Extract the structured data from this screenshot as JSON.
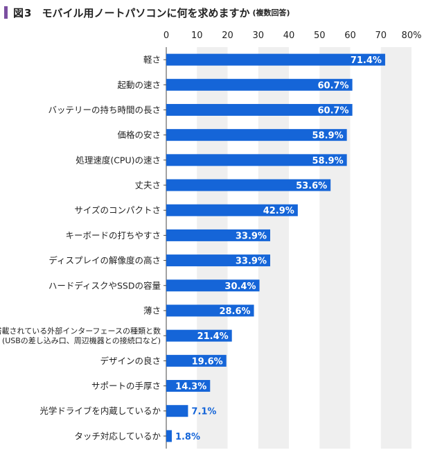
{
  "header": {
    "figure_number": "図3",
    "title": "モバイル用ノートパソコンに何を求めますか",
    "subtitle": "(複数回答)"
  },
  "colors": {
    "bar": "#1565d8",
    "bar_label_inside": "#ffffff",
    "bar_label_outside": "#1565d8",
    "band": "#efefef",
    "accent": "#7b4fa0"
  },
  "chart_data": {
    "type": "bar",
    "orientation": "horizontal",
    "title": "モバイル用ノートパソコンに何を求めますか",
    "categories": [
      "軽さ",
      "起動の速さ",
      "バッテリーの持ち時間の長さ",
      "価格の安さ",
      "処理速度(CPU)の速さ",
      "丈夫さ",
      "サイズのコンパクトさ",
      "キーボードの打ちやすさ",
      "ディスプレイの解像度の高さ",
      "ハードディスクやSSDの容量",
      "薄さ",
      "搭載されている外部インターフェースの種類と数\n(USBの差し込み口、周辺機器との接続口など)",
      "デザインの良さ",
      "サポートの手厚さ",
      "光学ドライブを内蔵しているか",
      "タッチ対応しているか"
    ],
    "values": [
      71.4,
      60.7,
      60.7,
      58.9,
      58.9,
      53.6,
      42.9,
      33.9,
      33.9,
      30.4,
      28.6,
      21.4,
      19.6,
      14.3,
      7.1,
      1.8
    ],
    "value_labels": [
      "71.4%",
      "60.7%",
      "60.7%",
      "58.9%",
      "58.9%",
      "53.6%",
      "42.9%",
      "33.9%",
      "33.9%",
      "30.4%",
      "28.6%",
      "21.4%",
      "19.6%",
      "14.3%",
      "7.1%",
      "1.8%"
    ],
    "xlim": [
      0,
      80
    ],
    "x_ticks": [
      "0",
      "10",
      "20",
      "30",
      "40",
      "50",
      "60",
      "70",
      "80%"
    ],
    "xlabel": "",
    "ylabel": "",
    "grid": "alternating vertical bands"
  }
}
